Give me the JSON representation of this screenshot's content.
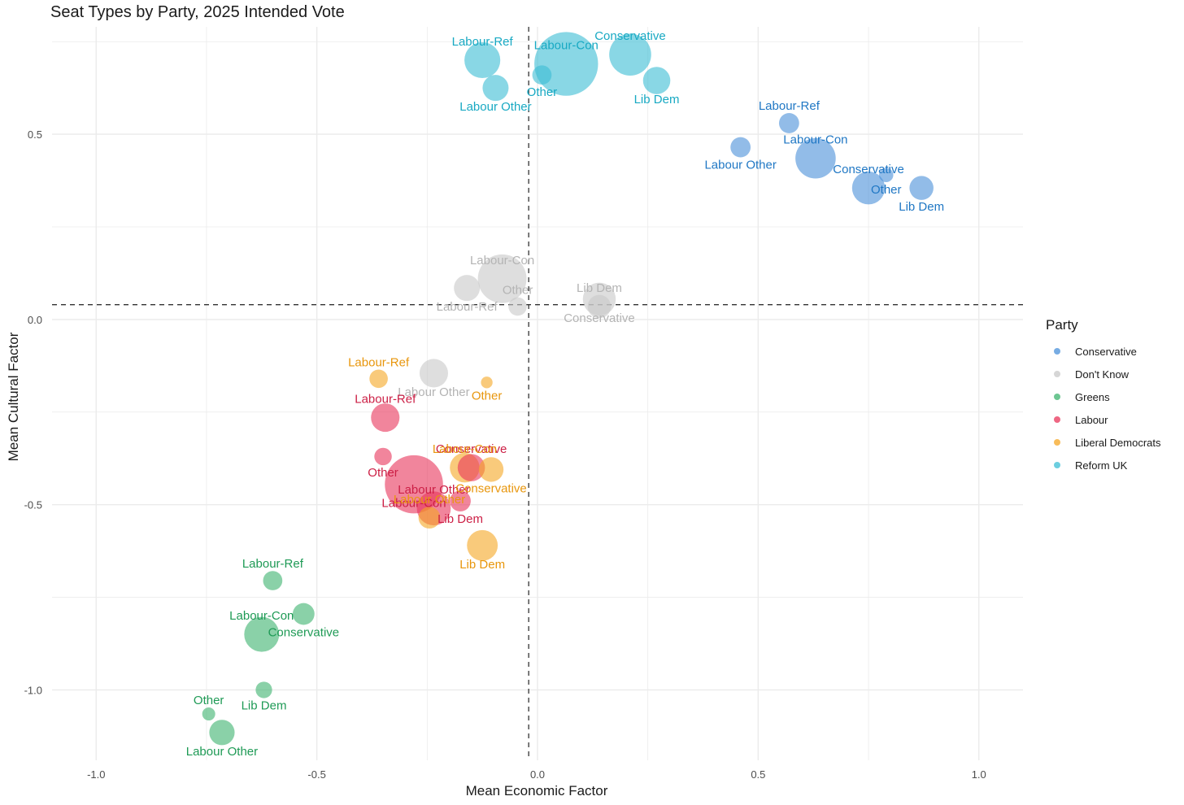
{
  "chart_data": {
    "type": "scatter",
    "title": "Seat Types by Party, 2025 Intended Vote",
    "xlabel": "Mean Economic Factor",
    "ylabel": "Mean Cultural Factor",
    "xlim": [
      -1.1,
      1.1
    ],
    "ylim": [
      -1.19,
      0.79
    ],
    "xticks": [
      -1.0,
      -0.5,
      0.0,
      0.5,
      1.0
    ],
    "xtick_labels": [
      "-1.0",
      "-0.5",
      "0.0",
      "0.5",
      "1.0"
    ],
    "yticks": [
      -1.0,
      -0.5,
      0.0,
      0.5
    ],
    "ytick_labels": [
      "-1.0",
      "-0.5",
      "0.0",
      "0.5"
    ],
    "vline_x": -0.02,
    "hline_y": 0.04,
    "legend_title": "Party",
    "legend_position": "right",
    "series": [
      {
        "name": "Conservative",
        "color": "#4a90d9",
        "label_color": "#1f77c4",
        "points": [
          {
            "label": "Labour-Ref",
            "x": 0.57,
            "y": 0.53,
            "size": 0.6
          },
          {
            "label": "Labour Other",
            "x": 0.46,
            "y": 0.465,
            "size": 0.6
          },
          {
            "label": "Labour-Con",
            "x": 0.63,
            "y": 0.435,
            "size": 2.4
          },
          {
            "label": "Other",
            "x": 0.79,
            "y": 0.39,
            "size": 0.3
          },
          {
            "label": "Conservative",
            "x": 0.75,
            "y": 0.355,
            "size": 1.6
          },
          {
            "label": "Lib Dem",
            "x": 0.87,
            "y": 0.355,
            "size": 0.85
          }
        ]
      },
      {
        "name": "Don't Know",
        "color": "#c8c8c8",
        "label_color": "#b4b4b4",
        "points": [
          {
            "label": "Labour-Con",
            "x": -0.08,
            "y": 0.11,
            "size": 3.5
          },
          {
            "label": "Labour-Ref",
            "x": -0.16,
            "y": 0.085,
            "size": 1.0
          },
          {
            "label": "Other",
            "x": -0.045,
            "y": 0.035,
            "size": 0.5
          },
          {
            "label": "Conservative",
            "x": 0.14,
            "y": 0.055,
            "size": 1.6
          },
          {
            "label": "Lib Dem",
            "x": 0.14,
            "y": 0.035,
            "size": 0.8
          },
          {
            "label": "Labour Other",
            "x": -0.235,
            "y": -0.145,
            "size": 1.2
          }
        ]
      },
      {
        "name": "Greens",
        "color": "#3cb36e",
        "label_color": "#1e9a55",
        "points": [
          {
            "label": "Labour-Ref",
            "x": -0.6,
            "y": -0.705,
            "size": 0.55
          },
          {
            "label": "Conservative",
            "x": -0.53,
            "y": -0.795,
            "size": 0.7
          },
          {
            "label": "Labour-Con",
            "x": -0.625,
            "y": -0.85,
            "size": 1.8
          },
          {
            "label": "Lib Dem",
            "x": -0.62,
            "y": -1.0,
            "size": 0.4
          },
          {
            "label": "Other",
            "x": -0.745,
            "y": -1.065,
            "size": 0.25
          },
          {
            "label": "Labour Other",
            "x": -0.715,
            "y": -1.115,
            "size": 0.95
          }
        ]
      },
      {
        "name": "Labour",
        "color": "#e8345a",
        "label_color": "#cc1f45",
        "points": [
          {
            "label": "Labour-Ref",
            "x": -0.345,
            "y": -0.265,
            "size": 1.2
          },
          {
            "label": "Other",
            "x": -0.35,
            "y": -0.37,
            "size": 0.45
          },
          {
            "label": "Conservative",
            "x": -0.15,
            "y": -0.4,
            "size": 1.1
          },
          {
            "label": "Labour-Con",
            "x": -0.28,
            "y": -0.445,
            "size": 5.0
          },
          {
            "label": "Labour Other",
            "x": -0.235,
            "y": -0.51,
            "size": 1.7
          },
          {
            "label": "Lib Dem",
            "x": -0.175,
            "y": -0.49,
            "size": 0.65
          }
        ]
      },
      {
        "name": "Liberal Democrats",
        "color": "#f5a623",
        "label_color": "#e8960c",
        "points": [
          {
            "label": "Labour-Ref",
            "x": -0.36,
            "y": -0.16,
            "size": 0.5
          },
          {
            "label": "Other",
            "x": -0.115,
            "y": -0.17,
            "size": 0.2
          },
          {
            "label": "Labour-Con",
            "x": -0.165,
            "y": -0.4,
            "size": 1.3
          },
          {
            "label": "Conservative",
            "x": -0.105,
            "y": -0.405,
            "size": 0.9
          },
          {
            "label": "Labour Other",
            "x": -0.245,
            "y": -0.535,
            "size": 0.7
          },
          {
            "label": "Lib Dem",
            "x": -0.125,
            "y": -0.61,
            "size": 1.4
          }
        ]
      },
      {
        "name": "Reform UK",
        "color": "#3bbdd4",
        "label_color": "#18a9c3",
        "points": [
          {
            "label": "Labour-Ref",
            "x": -0.125,
            "y": 0.7,
            "size": 1.9
          },
          {
            "label": "Labour Other",
            "x": -0.095,
            "y": 0.625,
            "size": 1.0
          },
          {
            "label": "Labour-Con",
            "x": 0.065,
            "y": 0.69,
            "size": 6.0
          },
          {
            "label": "Other",
            "x": 0.01,
            "y": 0.66,
            "size": 0.55
          },
          {
            "label": "Conservative",
            "x": 0.21,
            "y": 0.715,
            "size": 2.6
          },
          {
            "label": "Lib Dem",
            "x": 0.27,
            "y": 0.645,
            "size": 1.1
          }
        ]
      }
    ]
  }
}
